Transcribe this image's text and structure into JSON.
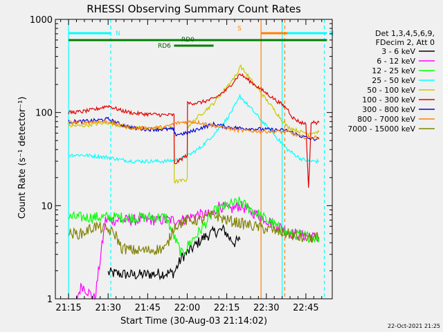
{
  "chart_data": {
    "type": "line",
    "title": "RHESSI Observing Summary Count Rates",
    "xlabel": "Start Time (30-Aug-03 21:14:02)",
    "ylabel": "Count Rate (s⁻¹ detector⁻¹)",
    "yscale": "log",
    "ylim": [
      1,
      1000
    ],
    "xlim_minutes_after_21_00": [
      10,
      55
    ],
    "x_ticks": [
      {
        "label": "21:15",
        "t": 15
      },
      {
        "label": "21:30",
        "t": 30
      },
      {
        "label": "21:45",
        "t": 45
      },
      {
        "label": "22:00",
        "t": 60
      },
      {
        "label": "22:15",
        "t": 75
      },
      {
        "label": "22:30",
        "t": 90
      },
      {
        "label": "22:45",
        "t": 105
      }
    ],
    "y_ticks": [
      {
        "label": "1",
        "v": 1
      },
      {
        "label": "10",
        "v": 10
      },
      {
        "label": "100",
        "v": 100
      },
      {
        "label": "1000",
        "v": 1000
      }
    ],
    "legend": {
      "position": "right",
      "header": [
        "Det 1,3,4,5,6,9,",
        "FDecim 2, Att 0"
      ],
      "entries": [
        {
          "label": "3 - 6 keV",
          "color": "#000000"
        },
        {
          "label": "6 - 12 keV",
          "color": "#ff00ff"
        },
        {
          "label": "12 - 25 keV",
          "color": "#00ff00"
        },
        {
          "label": "25 - 50 keV",
          "color": "#00ffff"
        },
        {
          "label": "50 - 100 keV",
          "color": "#c8c800"
        },
        {
          "label": "100 - 300 keV",
          "color": "#e00000"
        },
        {
          "label": "300 - 800 keV",
          "color": "#0000e0"
        },
        {
          "label": "800 - 7000 keV",
          "color": "#ff8000"
        },
        {
          "label": "7000 - 15000 keV",
          "color": "#808000"
        }
      ]
    },
    "annotations": [
      {
        "label": "N",
        "color": "#00ffff",
        "t_range": [
          15,
          31
        ],
        "level": "top"
      },
      {
        "label": "N",
        "color": "#00ffff",
        "t_range": [
          96,
          113
        ],
        "level": "top"
      },
      {
        "label": "S",
        "color": "#ff8000",
        "t_range": [
          88,
          98
        ],
        "level": "top"
      },
      {
        "label": "RD0",
        "color": "#008000",
        "t_range": [
          15,
          113
        ],
        "level": "second"
      },
      {
        "label": "RD6",
        "color": "#008000",
        "t_range": [
          55,
          70
        ],
        "level": "third"
      }
    ],
    "vertical_lines": [
      {
        "t": 15,
        "color": "#00ffff",
        "style": "solid"
      },
      {
        "t": 31,
        "color": "#00ffff",
        "style": "dashed"
      },
      {
        "t": 96,
        "color": "#00ffff",
        "style": "solid"
      },
      {
        "t": 112,
        "color": "#00ffff",
        "style": "dashed"
      },
      {
        "t": 88,
        "color": "#ff8000",
        "style": "solid"
      },
      {
        "t": 97,
        "color": "#ff8000",
        "style": "dashed"
      }
    ],
    "series": [
      {
        "name": "3 - 6 keV",
        "color": "#000000",
        "points": [
          [
            30,
            1.9
          ],
          [
            40,
            1.8
          ],
          [
            55,
            1.9
          ],
          [
            58,
            2.8
          ],
          [
            62,
            3.5
          ],
          [
            66,
            4.5
          ],
          [
            70,
            5.2
          ],
          [
            74,
            5.5
          ],
          [
            76,
            4.5
          ],
          [
            78,
            4
          ],
          [
            80,
            4.3
          ]
        ]
      },
      {
        "name": "6 - 12 keV",
        "color": "#ff00ff",
        "points": [
          [
            18,
            1.0
          ],
          [
            20,
            1.4
          ],
          [
            25,
            1.0
          ],
          [
            29,
            7
          ],
          [
            36,
            7
          ],
          [
            44,
            7
          ],
          [
            52,
            7
          ],
          [
            58,
            7
          ],
          [
            64,
            8
          ],
          [
            70,
            8
          ],
          [
            72,
            10
          ],
          [
            76,
            9
          ],
          [
            80,
            10
          ],
          [
            100,
            5
          ],
          [
            110,
            4.5
          ]
        ]
      },
      {
        "name": "12 - 25 keV",
        "color": "#00ff00",
        "points": [
          [
            15,
            7.5
          ],
          [
            25,
            7.5
          ],
          [
            35,
            7.5
          ],
          [
            45,
            7.5
          ],
          [
            52,
            7.5
          ],
          [
            56,
            4
          ],
          [
            58,
            3
          ],
          [
            61,
            4
          ],
          [
            64,
            5
          ],
          [
            67,
            6.5
          ],
          [
            70,
            8.5
          ],
          [
            75,
            10
          ],
          [
            80,
            11
          ],
          [
            98,
            5
          ],
          [
            103,
            4.8
          ],
          [
            110,
            4.5
          ]
        ]
      },
      {
        "name": "25 - 50 keV",
        "color": "#00ffff",
        "points": [
          [
            15,
            35
          ],
          [
            20,
            35
          ],
          [
            25,
            34
          ],
          [
            30,
            33
          ],
          [
            35,
            31
          ],
          [
            40,
            30
          ],
          [
            45,
            30
          ],
          [
            52,
            30
          ],
          [
            56,
            31
          ],
          [
            60,
            34
          ],
          [
            65,
            42
          ],
          [
            70,
            58
          ],
          [
            75,
            85
          ],
          [
            79,
            130
          ],
          [
            80,
            150
          ],
          [
            98,
            40
          ],
          [
            103,
            32
          ],
          [
            106,
            30
          ],
          [
            110,
            30
          ]
        ]
      },
      {
        "name": "50 - 100 keV",
        "color": "#c8c800",
        "points": [
          [
            15,
            72
          ],
          [
            20,
            72
          ],
          [
            25,
            75
          ],
          [
            30,
            78
          ],
          [
            35,
            72
          ],
          [
            40,
            68
          ],
          [
            45,
            67
          ],
          [
            52,
            68
          ],
          [
            55,
            68
          ],
          [
            55.1,
            18
          ],
          [
            60,
            19
          ],
          [
            60.1,
            70
          ],
          [
            65,
            95
          ],
          [
            70,
            125
          ],
          [
            75,
            190
          ],
          [
            79,
            260
          ],
          [
            80,
            320
          ],
          [
            98,
            70
          ],
          [
            103,
            62
          ],
          [
            106,
            60
          ],
          [
            110,
            62
          ]
        ]
      },
      {
        "name": "100 - 300 keV",
        "color": "#e00000",
        "points": [
          [
            15,
            100
          ],
          [
            20,
            102
          ],
          [
            25,
            108
          ],
          [
            30,
            118
          ],
          [
            35,
            105
          ],
          [
            40,
            98
          ],
          [
            45,
            96
          ],
          [
            52,
            94
          ],
          [
            55,
            94
          ],
          [
            55.1,
            28
          ],
          [
            58,
            32
          ],
          [
            60,
            35
          ],
          [
            60.1,
            125
          ],
          [
            65,
            128
          ],
          [
            70,
            140
          ],
          [
            75,
            175
          ],
          [
            79,
            240
          ],
          [
            80,
            260
          ],
          [
            98,
            110
          ],
          [
            100,
            88
          ],
          [
            103,
            78
          ],
          [
            105,
            76
          ],
          [
            106,
            15
          ],
          [
            107,
            78
          ],
          [
            110,
            78
          ]
        ]
      },
      {
        "name": "300 - 800 keV",
        "color": "#0000e0",
        "points": [
          [
            15,
            80
          ],
          [
            20,
            80
          ],
          [
            25,
            82
          ],
          [
            30,
            85
          ],
          [
            35,
            74
          ],
          [
            40,
            68
          ],
          [
            45,
            66
          ],
          [
            52,
            66
          ],
          [
            55,
            66
          ],
          [
            55.1,
            58
          ],
          [
            60,
            60
          ],
          [
            65,
            68
          ],
          [
            70,
            75
          ],
          [
            75,
            70
          ],
          [
            80,
            68
          ],
          [
            98,
            64
          ],
          [
            103,
            56
          ],
          [
            107,
            52
          ],
          [
            110,
            52
          ]
        ]
      },
      {
        "name": "800 - 7000 keV",
        "color": "#ff8000",
        "points": [
          [
            15,
            78
          ],
          [
            20,
            78
          ],
          [
            25,
            80
          ],
          [
            30,
            80
          ],
          [
            35,
            72
          ],
          [
            40,
            68
          ],
          [
            45,
            68
          ],
          [
            52,
            70
          ],
          [
            55,
            76
          ],
          [
            60,
            80
          ],
          [
            65,
            78
          ],
          [
            70,
            72
          ],
          [
            75,
            68
          ],
          [
            80,
            64
          ],
          [
            98,
            62
          ],
          [
            103,
            55
          ],
          [
            107,
            54
          ],
          [
            110,
            54
          ]
        ]
      },
      {
        "name": "7000 - 15000 keV",
        "color": "#808000",
        "points": [
          [
            15,
            5
          ],
          [
            20,
            5
          ],
          [
            25,
            6
          ],
          [
            30,
            5.5
          ],
          [
            33,
            4.8
          ],
          [
            35,
            3.5
          ],
          [
            40,
            3.3
          ],
          [
            45,
            3.3
          ],
          [
            52,
            3.5
          ],
          [
            55,
            6
          ],
          [
            60,
            7
          ],
          [
            65,
            7
          ],
          [
            70,
            8
          ],
          [
            75,
            7
          ],
          [
            80,
            6.5
          ],
          [
            98,
            5
          ],
          [
            103,
            4.5
          ],
          [
            110,
            4.5
          ]
        ]
      }
    ]
  },
  "footer": {
    "timestamp": "22-Oct-2021 21:25"
  }
}
